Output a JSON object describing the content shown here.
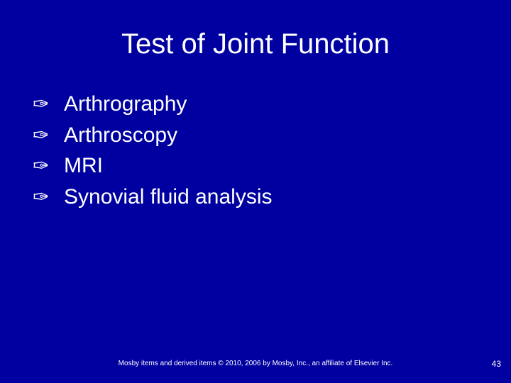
{
  "slide": {
    "background_color": "#0000a0",
    "text_color": "#ffffff",
    "title": "Test of Joint Function",
    "title_fontsize": 40,
    "bullet_glyph": "✑",
    "items": [
      {
        "text": "Arthrography"
      },
      {
        "text": "Arthroscopy"
      },
      {
        "text": "MRI"
      },
      {
        "text": "Synovial fluid analysis"
      }
    ],
    "item_fontsize": 30,
    "footer": "Mosby items and derived items © 2010, 2006 by Mosby, Inc., an affiliate of Elsevier Inc.",
    "footer_fontsize": 10,
    "page_number": "43"
  }
}
